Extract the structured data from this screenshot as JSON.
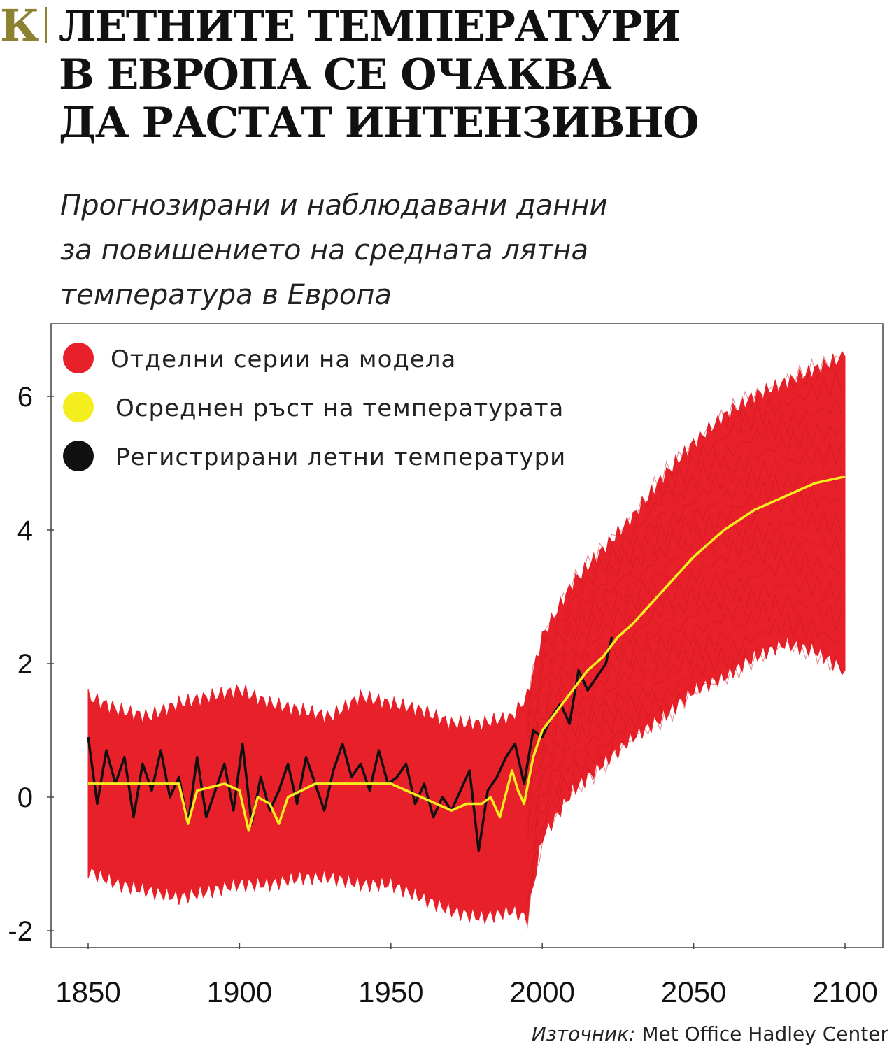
{
  "brand": {
    "logo_letter": "К"
  },
  "header": {
    "title_lines": [
      "ЛЕТНИТЕ ТЕМПЕРАТУРИ",
      "В ЕВРОПА СЕ ОЧАКВА",
      "ДА РАСТАТ ИНТЕНЗИВНО"
    ],
    "subtitle_lines": [
      "Прогнозирани и наблюдавани данни",
      "за повишението на средната лятна",
      "температура в Европа"
    ]
  },
  "source": {
    "label": "Източник:",
    "value": "Met Office Hadley Center"
  },
  "chart_data": {
    "type": "line",
    "title": "",
    "xlabel": "",
    "ylabel": "",
    "xlim": [
      1840,
      2112
    ],
    "ylim": [
      -2.3,
      7.0
    ],
    "x_ticks": [
      1850,
      1900,
      1950,
      2000,
      2050,
      2100
    ],
    "y_ticks": [
      -2,
      0,
      2,
      4,
      6
    ],
    "grid": false,
    "legend_position": "top-left",
    "series": [
      {
        "name": "Отделни серии на модела",
        "color": "#e8202a",
        "kind": "ensemble-envelope",
        "x": [
          1850,
          1860,
          1870,
          1880,
          1890,
          1900,
          1910,
          1920,
          1930,
          1940,
          1950,
          1960,
          1970,
          1980,
          1990,
          1995,
          2000,
          2010,
          2020,
          2030,
          2040,
          2050,
          2060,
          2070,
          2080,
          2090,
          2100
        ],
        "upper": [
          1.5,
          1.3,
          1.2,
          1.4,
          1.5,
          1.6,
          1.4,
          1.3,
          1.2,
          1.5,
          1.4,
          1.3,
          1.1,
          1.1,
          1.2,
          1.5,
          2.4,
          3.2,
          3.7,
          4.2,
          4.8,
          5.3,
          5.7,
          6.0,
          6.2,
          6.4,
          6.6
        ],
        "lower": [
          -1.1,
          -1.3,
          -1.4,
          -1.5,
          -1.4,
          -1.3,
          -1.3,
          -1.2,
          -1.2,
          -1.3,
          -1.3,
          -1.5,
          -1.7,
          -1.8,
          -1.7,
          -1.8,
          -0.6,
          0.1,
          0.5,
          0.9,
          1.2,
          1.6,
          1.8,
          2.1,
          2.3,
          2.2,
          1.9
        ]
      },
      {
        "name": "Осреднен ръст на температурата",
        "color": "#f5ee1e",
        "x": [
          1850,
          1860,
          1870,
          1880,
          1883,
          1886,
          1895,
          1900,
          1903,
          1906,
          1910,
          1913,
          1916,
          1925,
          1940,
          1950,
          1960,
          1965,
          1970,
          1975,
          1980,
          1983,
          1986,
          1990,
          1992,
          1994,
          1997,
          2000,
          2005,
          2010,
          2015,
          2020,
          2025,
          2030,
          2040,
          2050,
          2060,
          2070,
          2080,
          2090,
          2100
        ],
        "values": [
          0.2,
          0.2,
          0.2,
          0.2,
          -0.4,
          0.1,
          0.2,
          0.1,
          -0.5,
          0.0,
          -0.1,
          -0.4,
          0.0,
          0.2,
          0.2,
          0.2,
          0.0,
          -0.1,
          -0.2,
          -0.1,
          -0.1,
          0.0,
          -0.3,
          0.4,
          0.1,
          -0.1,
          0.6,
          1.0,
          1.3,
          1.6,
          1.9,
          2.1,
          2.4,
          2.6,
          3.1,
          3.6,
          4.0,
          4.3,
          4.5,
          4.7,
          4.8
        ]
      },
      {
        "name": "Регистрирани летни температури",
        "color": "#111111",
        "x": [
          1850,
          1853,
          1856,
          1859,
          1862,
          1865,
          1868,
          1871,
          1874,
          1877,
          1880,
          1883,
          1886,
          1889,
          1892,
          1895,
          1898,
          1901,
          1904,
          1907,
          1910,
          1913,
          1916,
          1919,
          1922,
          1925,
          1928,
          1931,
          1934,
          1937,
          1940,
          1943,
          1946,
          1949,
          1952,
          1955,
          1958,
          1961,
          1964,
          1967,
          1970,
          1973,
          1976,
          1979,
          1982,
          1985,
          1988,
          1991,
          1994,
          1997,
          2000,
          2003,
          2006,
          2009,
          2012,
          2015,
          2018,
          2021,
          2023
        ],
        "values": [
          0.9,
          -0.1,
          0.7,
          0.2,
          0.6,
          -0.3,
          0.5,
          0.1,
          0.7,
          0.0,
          0.3,
          -0.4,
          0.6,
          -0.3,
          0.1,
          0.5,
          -0.2,
          0.8,
          -0.4,
          0.3,
          -0.2,
          0.1,
          0.5,
          -0.1,
          0.6,
          0.2,
          -0.2,
          0.4,
          0.8,
          0.3,
          0.5,
          0.1,
          0.7,
          0.2,
          0.3,
          0.5,
          -0.1,
          0.2,
          -0.3,
          0.0,
          -0.2,
          0.1,
          0.4,
          -0.8,
          0.1,
          0.3,
          0.6,
          0.8,
          0.2,
          1.0,
          0.9,
          1.2,
          1.4,
          1.1,
          1.9,
          1.6,
          1.8,
          2.0,
          2.4
        ]
      }
    ]
  }
}
